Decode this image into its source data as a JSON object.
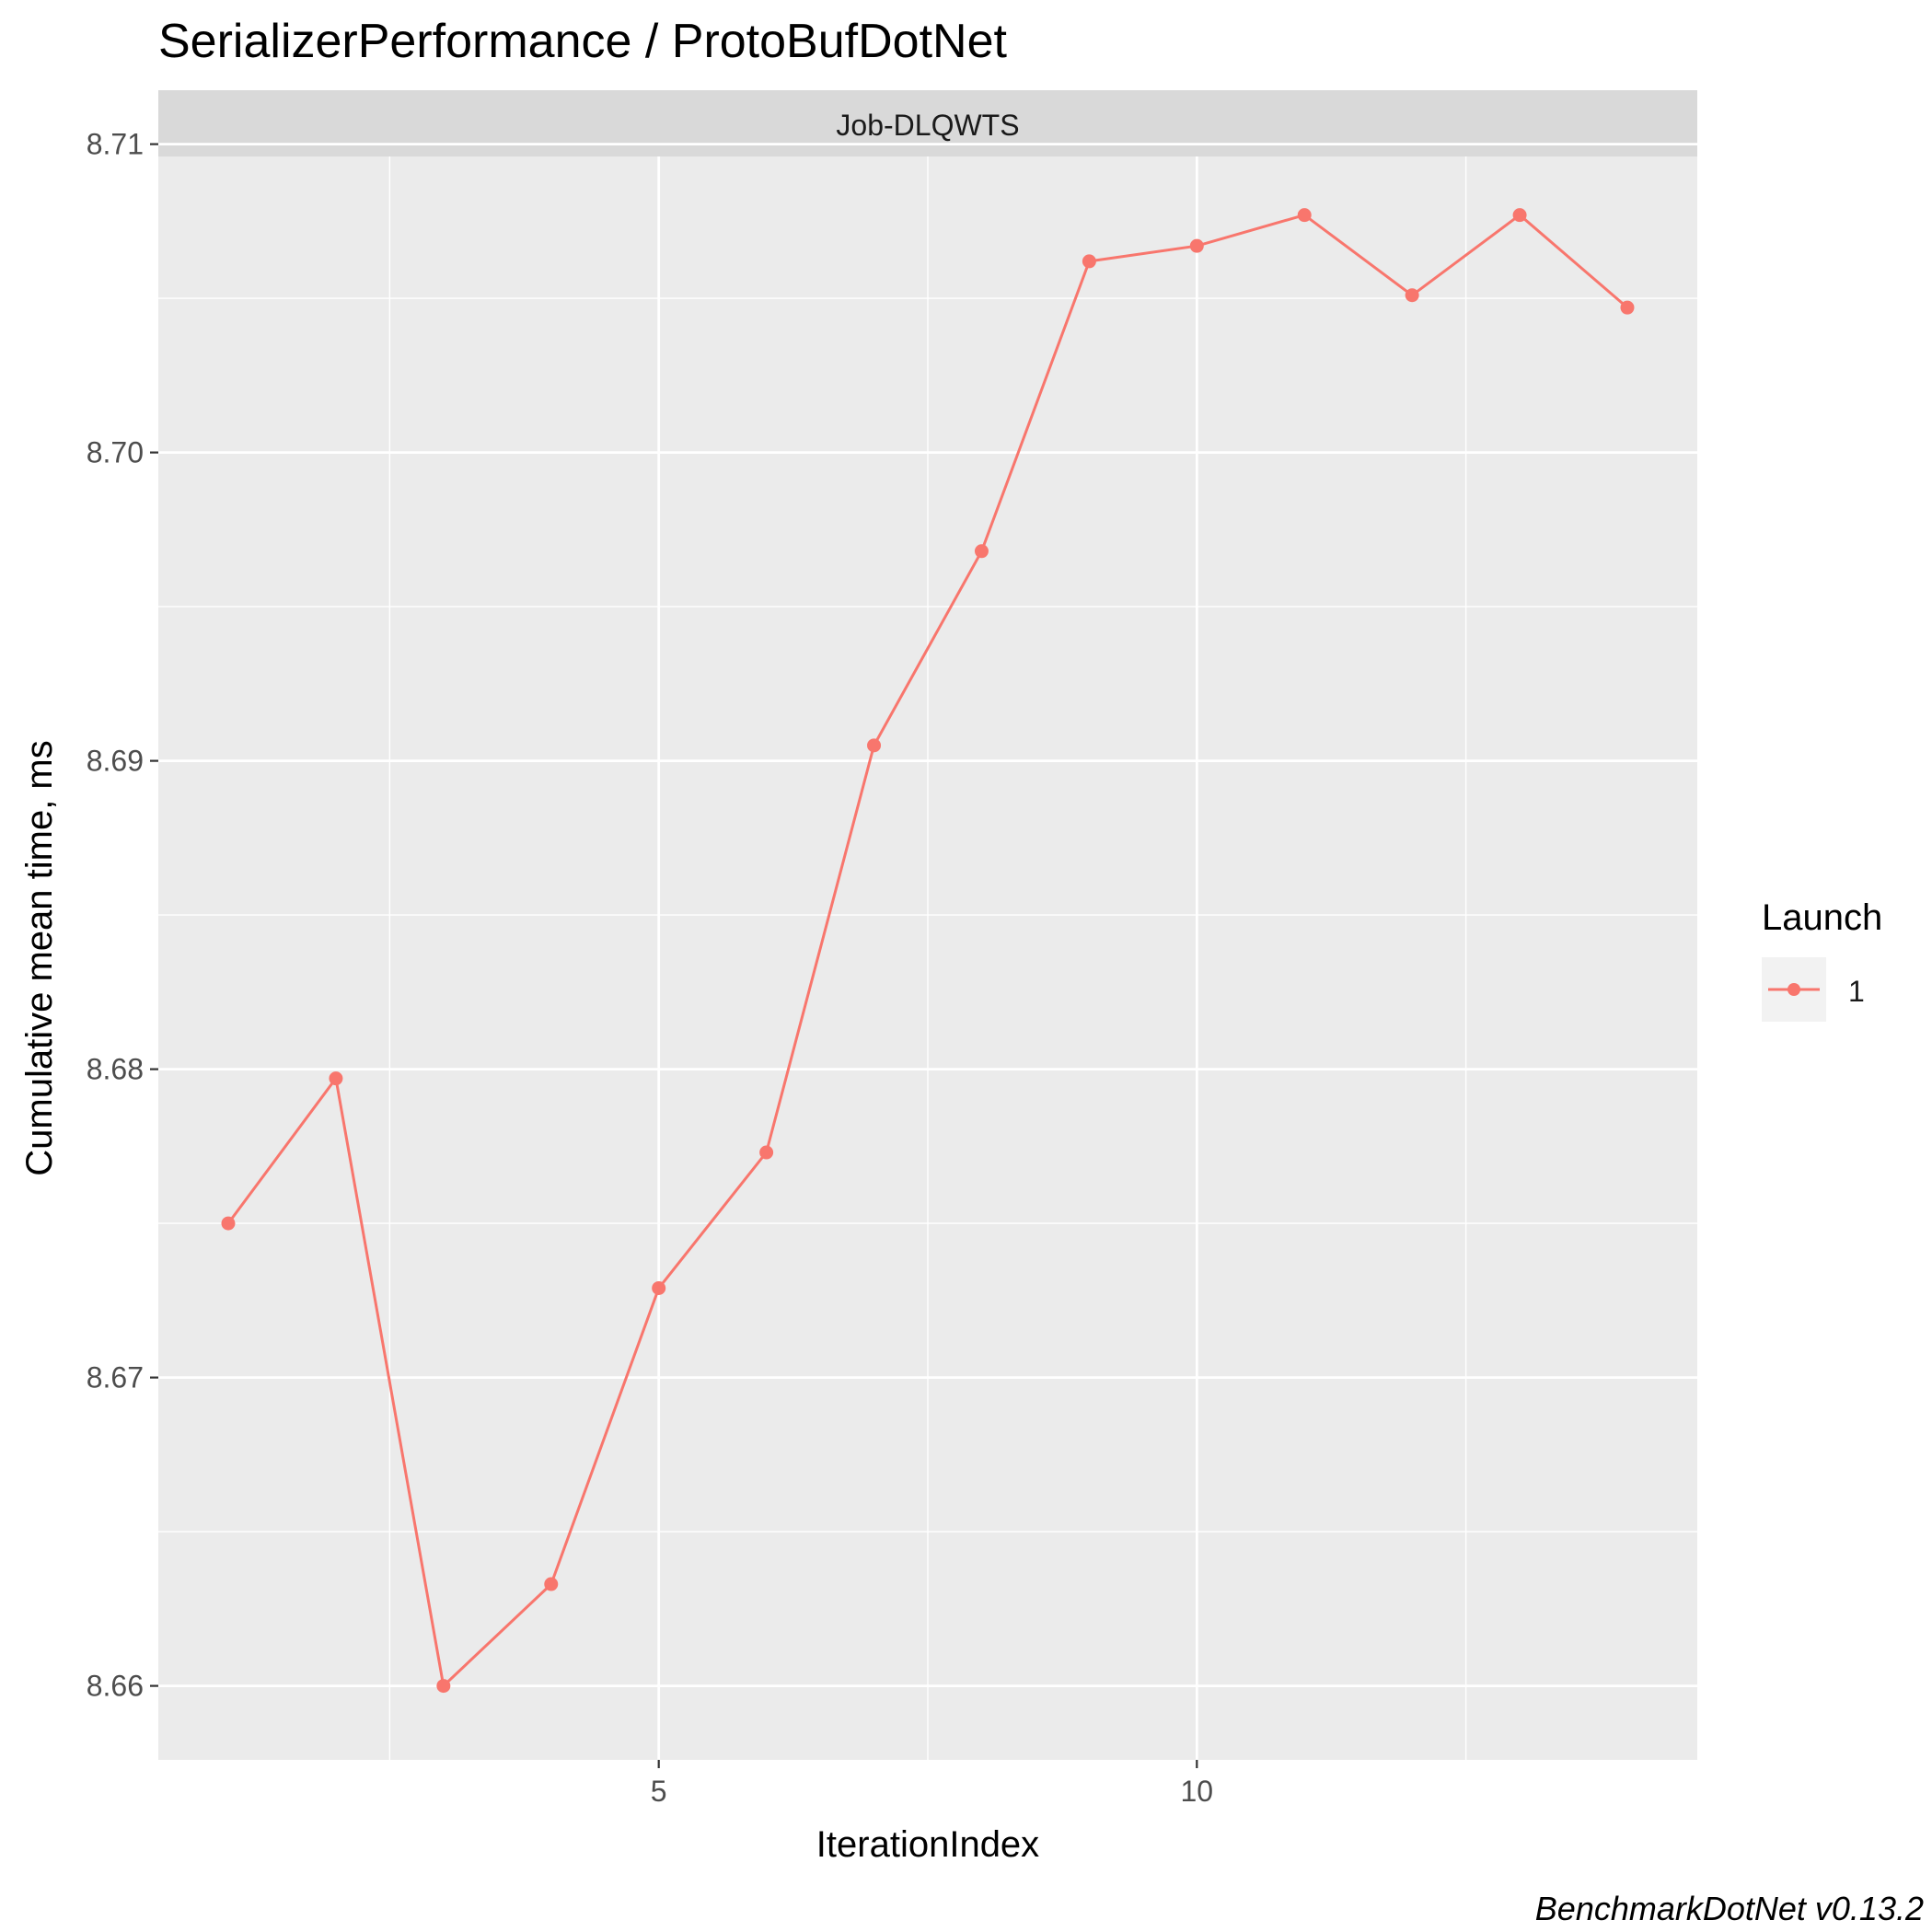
{
  "colors": {
    "panel_bg": "#EBEBEB",
    "strip_bg": "#D9D9D9",
    "grid": "#FFFFFF",
    "series": "#F8766D",
    "text": "#1A1A1A",
    "tick_text": "#4D4D4D"
  },
  "caption": "BenchmarkDotNet v0.13.2",
  "chart_data": {
    "type": "line",
    "title": "SerializerPerformance / ProtoBufDotNet",
    "facet_label": "Job-DLQWTS",
    "xlabel": "IterationIndex",
    "ylabel": "Cumulative mean time, ms",
    "xlim": [
      0.35,
      14.65
    ],
    "ylim": [
      8.6576,
      8.7096
    ],
    "x_ticks": [
      5,
      10
    ],
    "x_tick_labels": [
      "5",
      "10"
    ],
    "y_ticks": [
      8.66,
      8.67,
      8.68,
      8.69,
      8.7,
      8.71
    ],
    "y_tick_labels": [
      "8.66",
      "8.67",
      "8.68",
      "8.69",
      "8.70",
      "8.71"
    ],
    "grid": true,
    "legend": {
      "title": "Launch",
      "position": "right"
    },
    "series": [
      {
        "name": "1",
        "x": [
          1,
          2,
          3,
          4,
          5,
          6,
          7,
          8,
          9,
          10,
          11,
          12,
          13,
          14
        ],
        "y": [
          8.675,
          8.6797,
          8.66,
          8.6633,
          8.6729,
          8.6773,
          8.6905,
          8.6968,
          8.7062,
          8.7067,
          8.7077,
          8.7051,
          8.7077,
          8.7047
        ]
      }
    ]
  }
}
